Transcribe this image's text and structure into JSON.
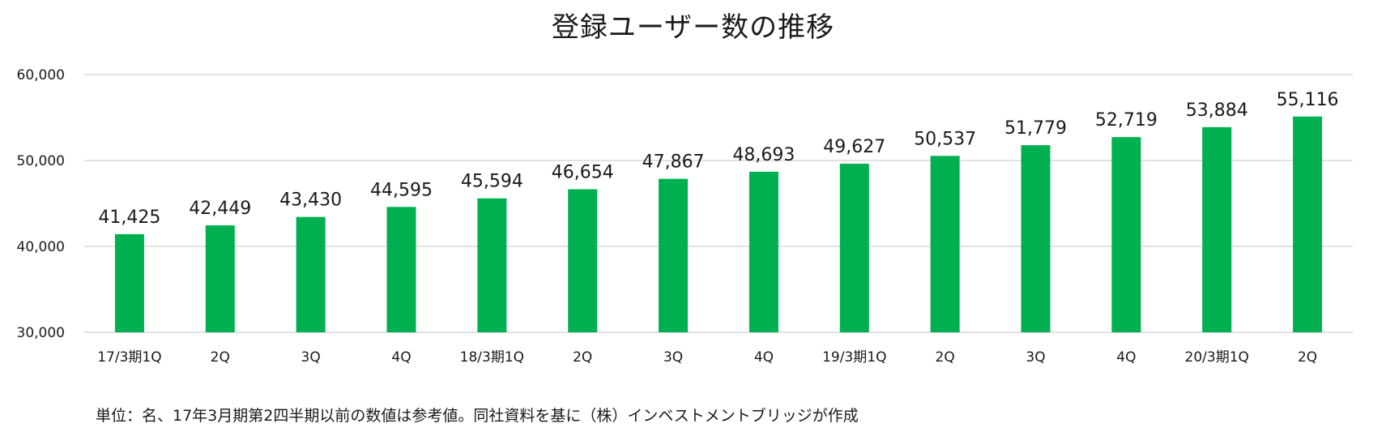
{
  "chart_data": {
    "type": "bar",
    "title": "登録ユーザー数の推移",
    "categories": [
      "17/3期1Q",
      "2Q",
      "3Q",
      "4Q",
      "18/3期1Q",
      "2Q",
      "3Q",
      "4Q",
      "19/3期1Q",
      "2Q",
      "3Q",
      "4Q",
      "20/3期1Q",
      "2Q"
    ],
    "series": [
      {
        "values": [
          41425,
          42449,
          43430,
          44595,
          45594,
          46654,
          47867,
          48693,
          49627,
          50537,
          51779,
          52719,
          53884,
          55116
        ],
        "labels": [
          "41,425",
          "42,449",
          "43,430",
          "44,595",
          "45,594",
          "46,654",
          "47,867",
          "48,693",
          "49,627",
          "50,537",
          "51,779",
          "52,719",
          "53,884",
          "55,116"
        ],
        "color": "#00b050"
      }
    ],
    "ylim": [
      30000,
      60000
    ],
    "yticks": [
      30000,
      40000,
      50000,
      60000
    ],
    "ytick_labels": [
      "30,000",
      "40,000",
      "50,000",
      "60,000"
    ],
    "xlabel": "",
    "ylabel": "",
    "grid": true,
    "gridline_color": "#d9d9d9",
    "legend": "none",
    "note": "単位：名、17年3月期第2四半期以前の数値は参考値。同社資料を基に（株）インベストメントブリッジが作成"
  }
}
